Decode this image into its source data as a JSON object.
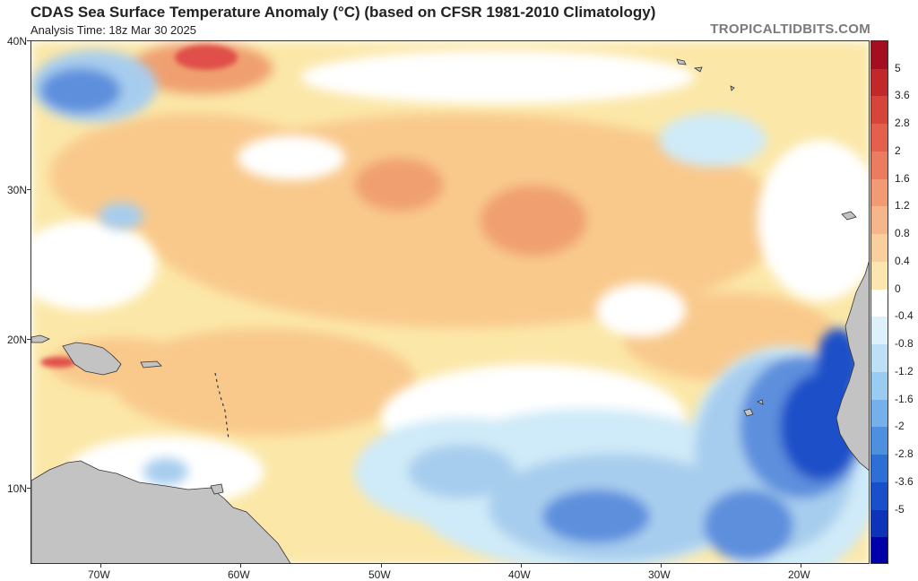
{
  "header": {
    "title": "CDAS Sea Surface Temperature Anomaly (°C) (based on CFSR 1981-2010 Climatology)",
    "analysis_time": "Analysis Time: 18z Mar 30 2025",
    "brand": "TROPICALTIDBITS.COM"
  },
  "map": {
    "lat_labels": [
      "40N",
      "30N",
      "20N",
      "10N"
    ],
    "lon_labels": [
      "70W",
      "60W",
      "50W",
      "40W",
      "30W",
      "20W"
    ],
    "colors": {
      "land": "#c3c3c3",
      "ocean_neutral": "#ffffff",
      "warm_light": "#fbe7a7",
      "warm_mid": "#f9c98c",
      "warm_strong": "#f0a070",
      "warm_hot": "#e0504a",
      "cool_light": "#cfeaf8",
      "cool_mid": "#a7cdee",
      "cool_strong": "#5d8fdd",
      "cool_deep": "#1e4fc8"
    }
  },
  "colorbar": {
    "labels": [
      "5",
      "3.6",
      "2.8",
      "2",
      "1.6",
      "1.2",
      "0.8",
      "0.4",
      "0",
      "-0.4",
      "-0.8",
      "-1.2",
      "-1.6",
      "-2",
      "-2.8",
      "-3.6",
      "-5"
    ],
    "colors": [
      "#a30f1e",
      "#c0282a",
      "#d6453a",
      "#e4604c",
      "#ec7c5f",
      "#f19a74",
      "#f5b68b",
      "#f9cf9e",
      "#fbe6b0",
      "#ffffff",
      "#ddf1fb",
      "#bde0f7",
      "#9acbf1",
      "#76b0ea",
      "#4f8fe0",
      "#2e6ed7",
      "#1a4fcb",
      "#0c33b8",
      "#0000a8"
    ]
  }
}
